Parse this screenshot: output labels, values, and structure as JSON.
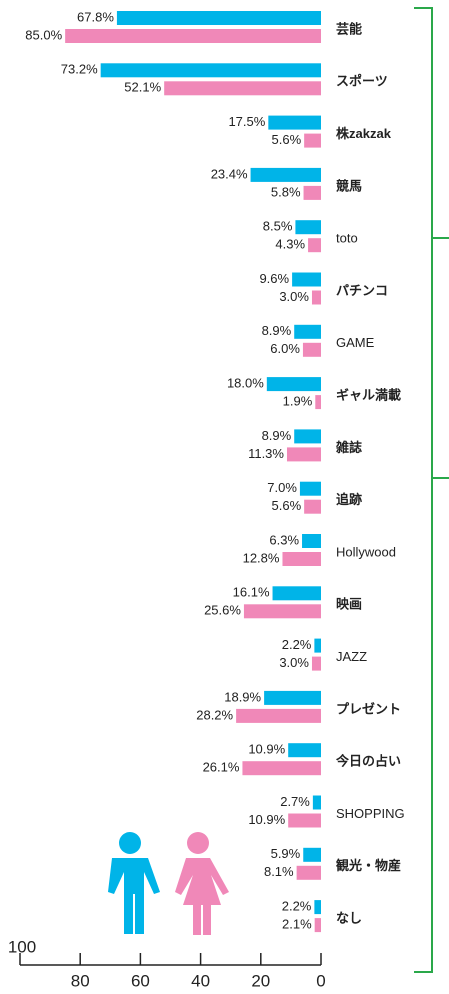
{
  "chart_data": {
    "type": "bar",
    "orientation": "horizontal",
    "categories": [
      "芸能",
      "スポーツ",
      "株zakzak",
      "競馬",
      "toto",
      "パチンコ",
      "GAME",
      "ギャル満載",
      "雑誌",
      "追跡",
      "Hollywood",
      "映画",
      "JAZZ",
      "プレゼント",
      "今日の占い",
      "SHOPPING",
      "観光・物産",
      "なし"
    ],
    "series": [
      {
        "color": "#00b4e8",
        "values": [
          67.8,
          73.2,
          17.5,
          23.4,
          8.5,
          9.6,
          8.9,
          18.0,
          8.9,
          7.0,
          6.3,
          16.1,
          2.2,
          18.9,
          10.9,
          2.7,
          5.9,
          2.2
        ],
        "value_labels": [
          "67.8%",
          "73.2%",
          "17.5%",
          "23.4%",
          "8.5%",
          "9.6%",
          "8.9%",
          "18.0%",
          "8.9%",
          "7.0%",
          "6.3%",
          "16.1%",
          "2.2%",
          "18.9%",
          "10.9%",
          "2.7%",
          "5.9%",
          "2.2%"
        ]
      },
      {
        "color": "#f088b8",
        "values": [
          85.0,
          52.1,
          5.6,
          5.8,
          4.3,
          3.0,
          6.0,
          1.9,
          11.3,
          5.6,
          12.8,
          25.6,
          3.0,
          28.2,
          26.1,
          10.9,
          8.1,
          2.1
        ],
        "value_labels": [
          "85.0%",
          "52.1%",
          "5.6%",
          "5.8%",
          "4.3%",
          "3.0%",
          "6.0%",
          "1.9%",
          "11.3%",
          "5.6%",
          "12.8%",
          "25.6%",
          "3.0%",
          "28.2%",
          "26.1%",
          "10.9%",
          "8.1%",
          "2.1%"
        ]
      }
    ],
    "xlim": [
      100,
      0
    ],
    "xticks": [
      100,
      80,
      60,
      40,
      20,
      0
    ]
  }
}
